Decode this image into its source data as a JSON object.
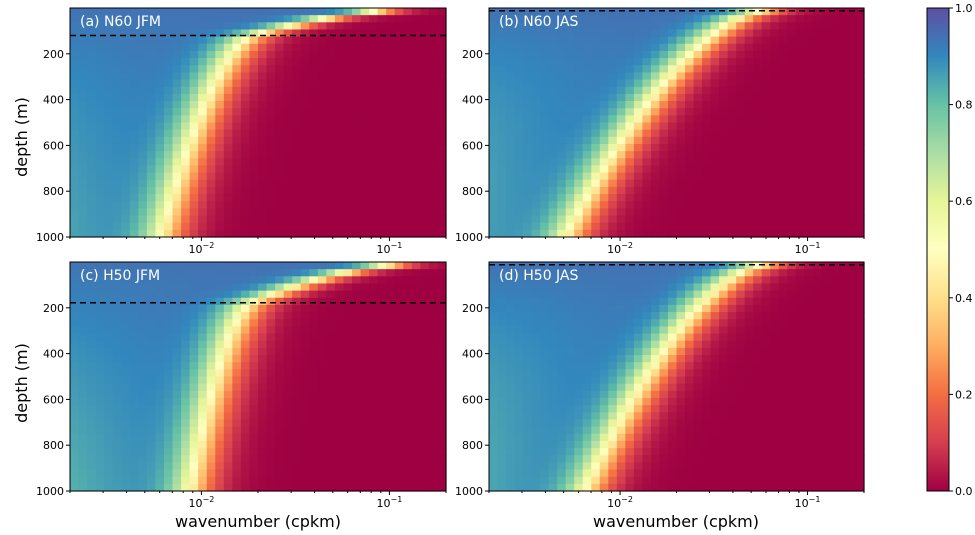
{
  "chart_data": {
    "type": "heatmap",
    "colormap": "Spectral",
    "xscale": "log",
    "xlabel": "wavenumber (cpkm)",
    "ylabel": "depth (m)",
    "xlim": [
      0.002,
      0.2
    ],
    "ylim": [
      1000,
      0
    ],
    "x_ticks": [
      {
        "value": 0.01,
        "base": "10",
        "exp": "−2"
      },
      {
        "value": 0.1,
        "base": "10",
        "exp": "−1"
      }
    ],
    "y_ticks": [
      "200",
      "400",
      "600",
      "800",
      "1000"
    ],
    "colorbar": {
      "range": [
        0.0,
        1.0
      ],
      "ticks": [
        "1.0",
        "0.8",
        "0.6",
        "0.4",
        "0.2",
        "0.0"
      ]
    },
    "panels": [
      {
        "label": "(a) N60 JFM",
        "mld": 120,
        "surface_cutoff": 0.0195,
        "deep_cutoff": 0.0062
      },
      {
        "label": "(b) N60 JAS",
        "mld": 12,
        "surface_cutoff": 0.06,
        "deep_cutoff": 0.0052
      },
      {
        "label": "(c) H50 JFM",
        "mld": 178,
        "surface_cutoff": 0.019,
        "deep_cutoff": 0.0088
      },
      {
        "label": "(d) H50 JAS",
        "mld": 12,
        "surface_cutoff": 0.06,
        "deep_cutoff": 0.0066
      }
    ]
  }
}
